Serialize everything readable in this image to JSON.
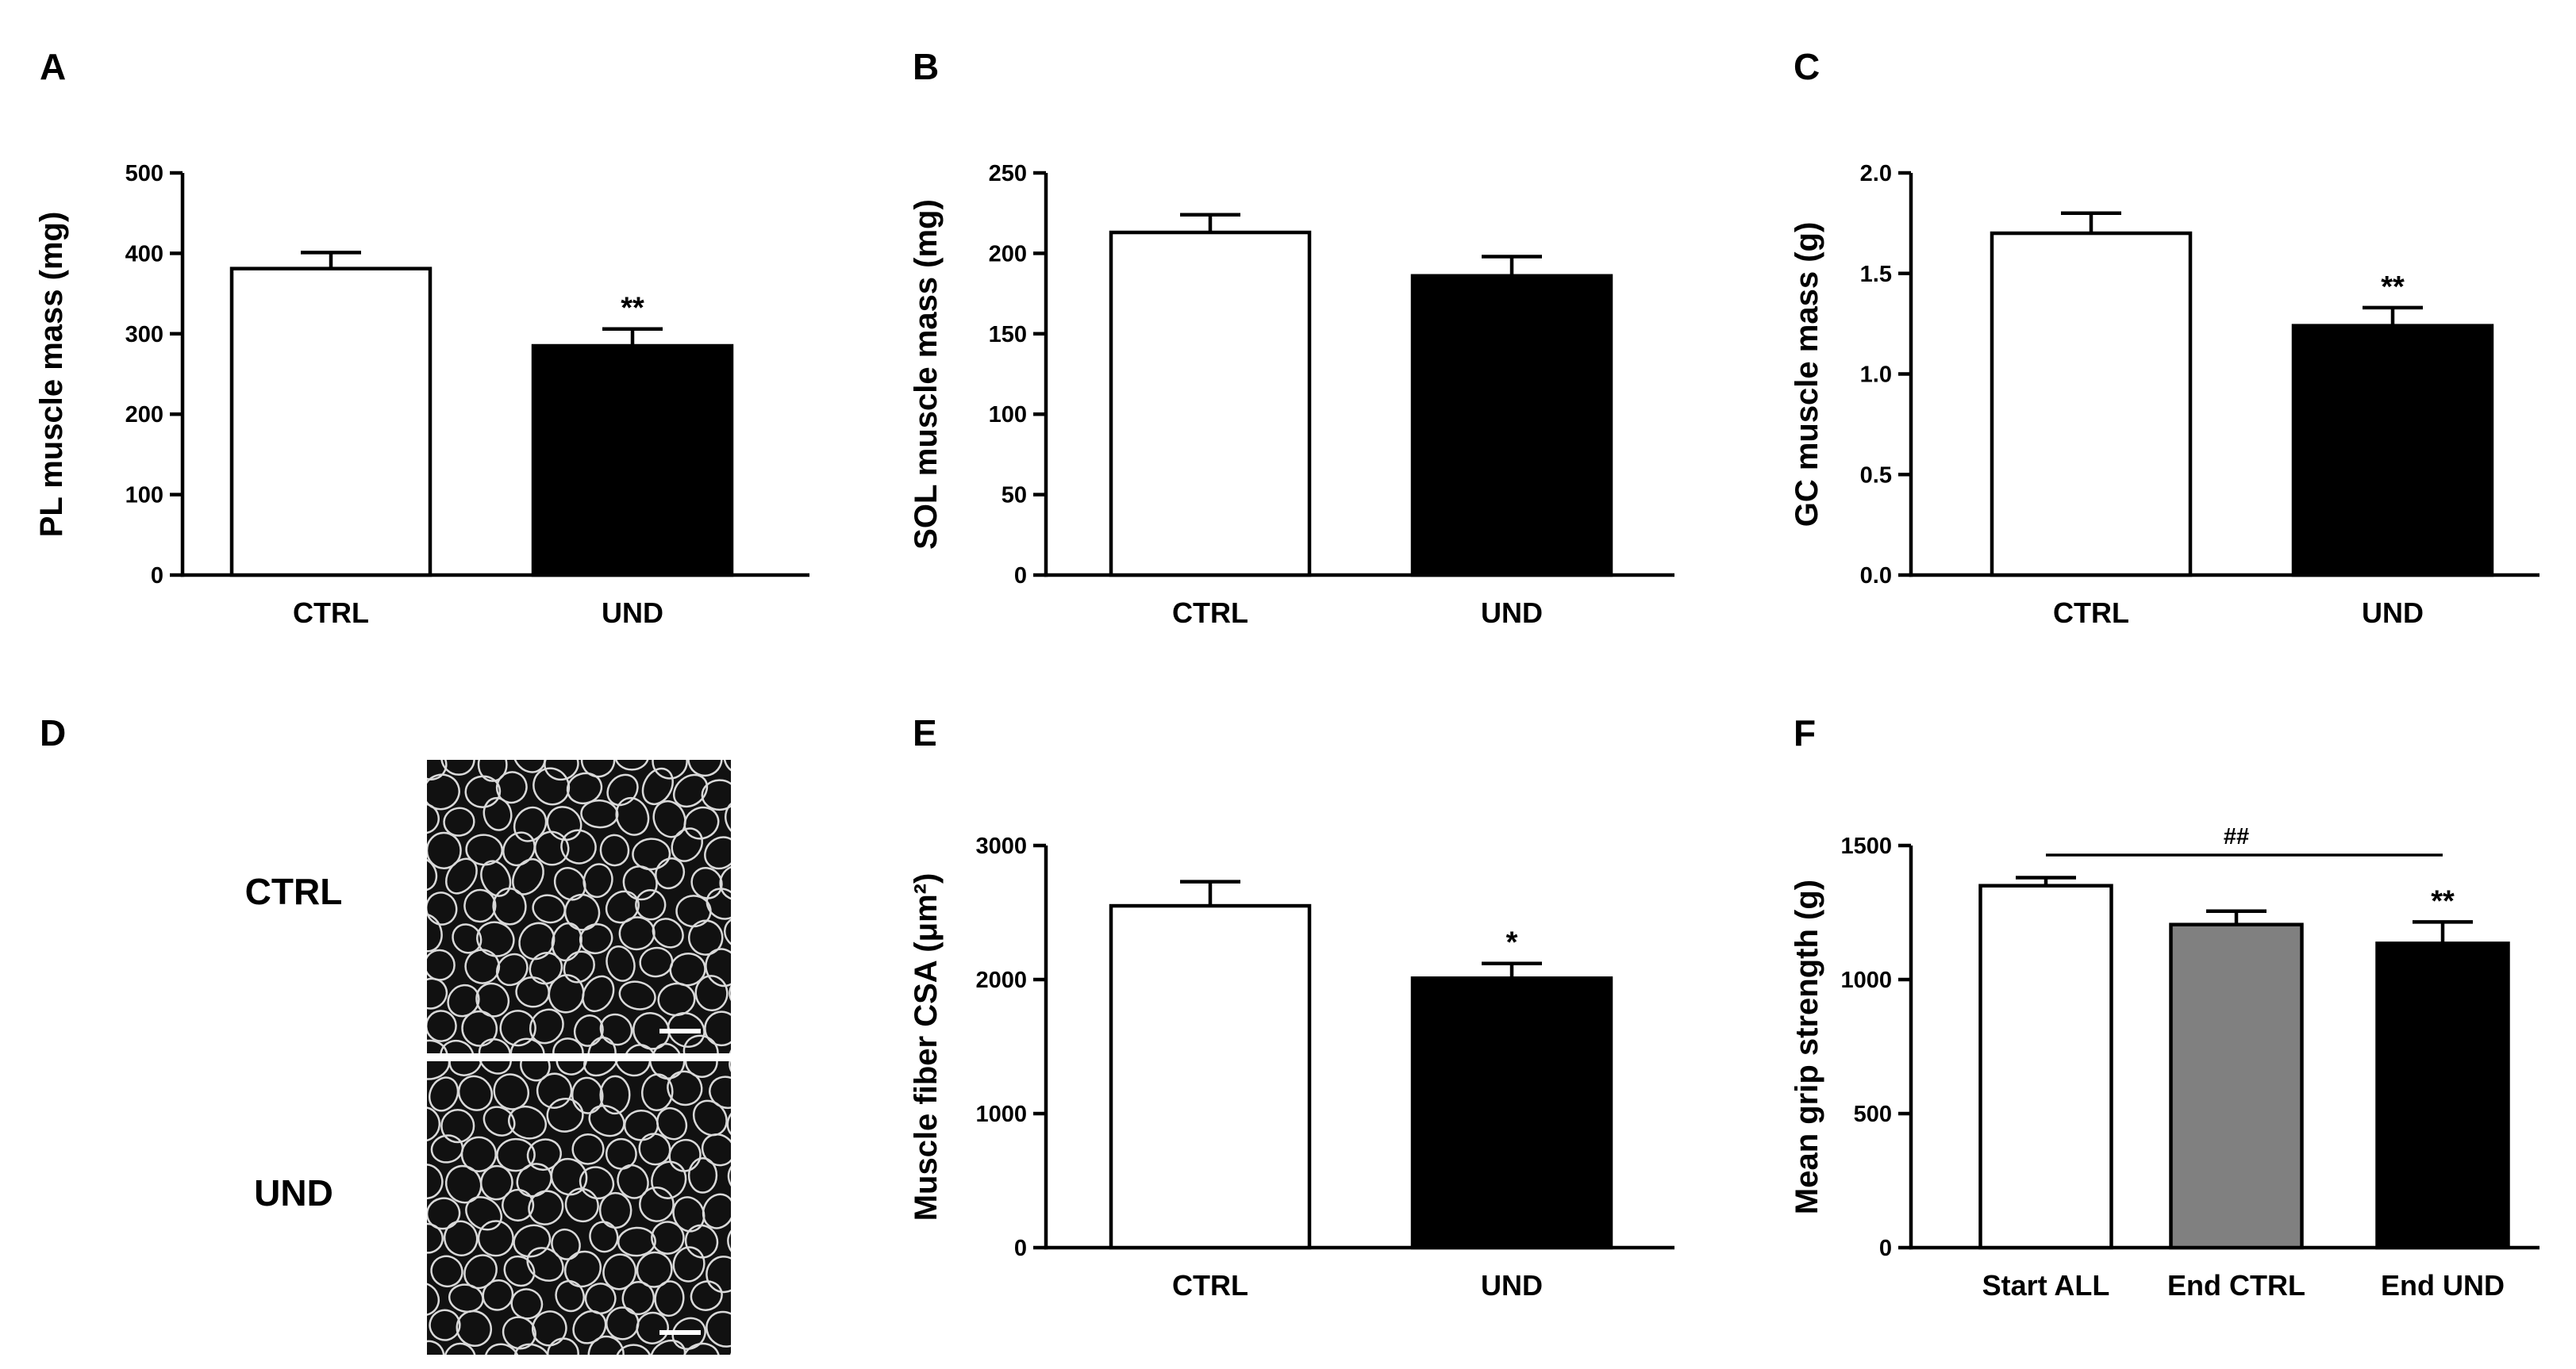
{
  "panels": {
    "A": "A",
    "B": "B",
    "C": "C",
    "D": "D",
    "E": "E",
    "F": "F"
  },
  "micrographs": {
    "ctrl_label": "CTRL",
    "und_label": "UND"
  },
  "colors": {
    "axis": "#000000",
    "ctrl_fill": "#ffffff",
    "und_fill": "#000000",
    "end_ctrl_fill": "#808080",
    "micrograph_bg": "#111111",
    "fiber_outline": "#d9d9d9",
    "scale_bar": "#ffffff"
  },
  "chart_data": [
    {
      "panel": "A",
      "type": "bar",
      "categories": [
        "CTRL",
        "UND"
      ],
      "values": [
        381,
        285
      ],
      "errors": [
        20,
        21
      ],
      "fills": [
        "#ffffff",
        "#000000"
      ],
      "significance": [
        "",
        "**"
      ],
      "ylabel": "PL muscle mass (mg)",
      "ylim": [
        0,
        500
      ],
      "yticks": [
        0,
        100,
        200,
        300,
        400,
        500
      ],
      "yticklabels": [
        "0",
        "100",
        "200",
        "300",
        "400",
        "500"
      ]
    },
    {
      "panel": "B",
      "type": "bar",
      "categories": [
        "CTRL",
        "UND"
      ],
      "values": [
        213,
        186
      ],
      "errors": [
        11,
        12
      ],
      "fills": [
        "#ffffff",
        "#000000"
      ],
      "significance": [
        "",
        ""
      ],
      "ylabel": "SOL muscle mass (mg)",
      "ylim": [
        0,
        250
      ],
      "yticks": [
        0,
        50,
        100,
        150,
        200,
        250
      ],
      "yticklabels": [
        "0",
        "50",
        "100",
        "150",
        "200",
        "250"
      ]
    },
    {
      "panel": "C",
      "type": "bar",
      "categories": [
        "CTRL",
        "UND"
      ],
      "values": [
        1.7,
        1.24
      ],
      "errors": [
        0.1,
        0.09
      ],
      "fills": [
        "#ffffff",
        "#000000"
      ],
      "significance": [
        "",
        "**"
      ],
      "ylabel": "GC muscle mass (g)",
      "ylim": [
        0,
        2.0
      ],
      "yticks": [
        0,
        0.5,
        1.0,
        1.5,
        2.0
      ],
      "yticklabels": [
        "0.0",
        "0.5",
        "1.0",
        "1.5",
        "2.0"
      ]
    },
    {
      "panel": "E",
      "type": "bar",
      "categories": [
        "CTRL",
        "UND"
      ],
      "values": [
        2550,
        2010
      ],
      "errors": [
        180,
        110
      ],
      "fills": [
        "#ffffff",
        "#000000"
      ],
      "significance": [
        "",
        "*"
      ],
      "ylabel": "Muscle fiber CSA (μm²)",
      "ylim": [
        0,
        3000
      ],
      "yticks": [
        0,
        1000,
        2000,
        3000
      ],
      "yticklabels": [
        "0",
        "1000",
        "2000",
        "3000"
      ]
    },
    {
      "panel": "F",
      "type": "bar",
      "categories": [
        "Start ALL",
        "End CTRL",
        "End UND"
      ],
      "values": [
        1350,
        1205,
        1135
      ],
      "errors": [
        30,
        50,
        80
      ],
      "fills": [
        "#ffffff",
        "#808080",
        "#000000"
      ],
      "significance": [
        "",
        "",
        "**"
      ],
      "bracket": {
        "from": "Start ALL",
        "to": "End UND",
        "label": "##"
      },
      "ylabel": "Mean grip strength (g)",
      "ylim": [
        0,
        1500
      ],
      "yticks": [
        0,
        500,
        1000,
        1500
      ],
      "yticklabels": [
        "0",
        "500",
        "1000",
        "1500"
      ]
    }
  ]
}
